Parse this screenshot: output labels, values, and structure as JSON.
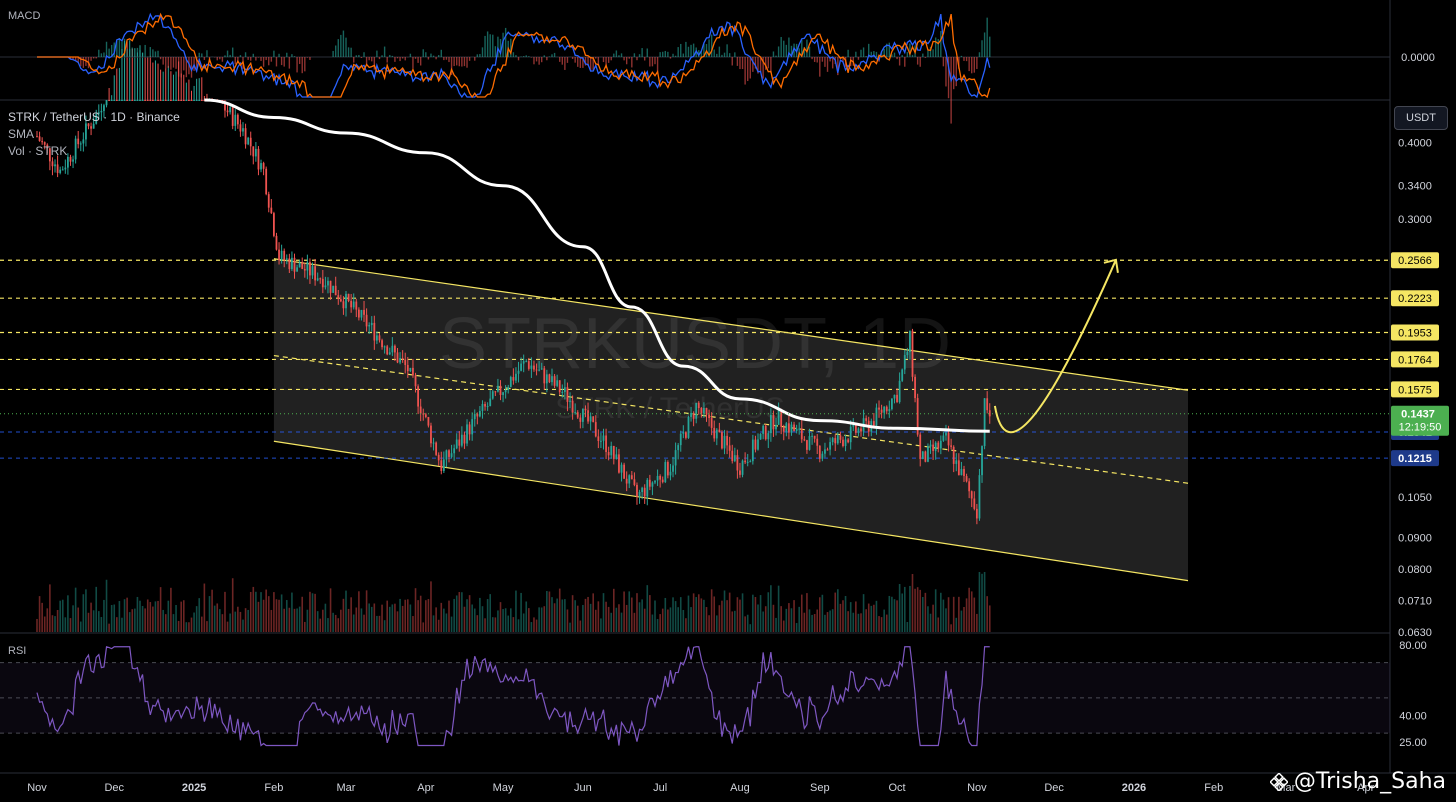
{
  "header": {
    "title": "STRK / TetherUS · 1D · Binance",
    "sma_label": "SMA",
    "vol_label": "Vol · STRK"
  },
  "watermark_text": "STRKUSDT, 1D",
  "watermark_sub": "STRK / TetherUS",
  "macd_label": "MACD",
  "rsi_label": "RSI",
  "unit_button": "USDT",
  "credit": "@Trisha_Saha",
  "colors": {
    "up": "#26a69a",
    "down": "#ef5350",
    "sma": "#ffffff",
    "channel": "#f5e663",
    "level": "#f5e663",
    "price_tag": "#4caf50",
    "blue_tag": "#1e3a8a",
    "rsi": "#7e57c2",
    "macd": "#2962ff",
    "signal": "#ff6d00"
  },
  "chart_data": {
    "type": "candlestick",
    "x_axis": {
      "ticks": [
        "Nov",
        "Dec",
        "2025",
        "Feb",
        "Mar",
        "Apr",
        "May",
        "Jun",
        "Jul",
        "Aug",
        "Sep",
        "Oct",
        "Nov",
        "Dec",
        "2026",
        "Feb",
        "Mar",
        "Apr"
      ]
    },
    "y_axis": {
      "scale": "log",
      "range": [
        0.063,
        0.47
      ],
      "ticks": [
        "0.4000",
        "0.3400",
        "0.3000",
        "0.1050",
        "0.0900",
        "0.0800",
        "0.0710",
        "0.0630"
      ]
    },
    "levels": [
      {
        "value": 0.2566,
        "label": "0.2566",
        "style": "dashed",
        "color": "#f5e663"
      },
      {
        "value": 0.2223,
        "label": "0.2223",
        "style": "dashed",
        "color": "#f5e663"
      },
      {
        "value": 0.1953,
        "label": "0.1953",
        "style": "dashed",
        "color": "#f5e663"
      },
      {
        "value": 0.1764,
        "label": "0.1764",
        "style": "dashed",
        "color": "#f5e663"
      },
      {
        "value": 0.1575,
        "label": "0.1575",
        "style": "dashed",
        "color": "#f5e663"
      }
    ],
    "current_price": {
      "value": 0.1437,
      "label": "0.1437",
      "countdown": "12:19:50"
    },
    "blue_levels": [
      {
        "value": 0.1341,
        "label": "0.1341"
      },
      {
        "value": 0.1215,
        "label": "0.1215"
      }
    ],
    "channel": {
      "upper": [
        {
          "date": "2025-02-01",
          "value": 0.258
        },
        {
          "date": "2026-01-22",
          "value": 0.157
        }
      ],
      "middle": [
        {
          "date": "2025-02-01",
          "value": 0.179
        },
        {
          "date": "2026-01-22",
          "value": 0.1105
        }
      ],
      "lower": [
        {
          "date": "2025-02-01",
          "value": 0.1295
        },
        {
          "date": "2026-01-22",
          "value": 0.0765
        }
      ]
    },
    "projection": {
      "from": {
        "date": "2025-11-15",
        "value": 0.139
      },
      "to": {
        "date": "2025-12-25",
        "value": 0.257
      }
    },
    "sma": [
      {
        "date": "2025-01-05",
        "value": 0.47
      },
      {
        "date": "2025-02-01",
        "value": 0.44
      },
      {
        "date": "2025-03-01",
        "value": 0.415
      },
      {
        "date": "2025-04-01",
        "value": 0.385
      },
      {
        "date": "2025-05-01",
        "value": 0.34
      },
      {
        "date": "2025-06-01",
        "value": 0.27
      },
      {
        "date": "2025-06-20",
        "value": 0.215
      },
      {
        "date": "2025-07-10",
        "value": 0.172
      },
      {
        "date": "2025-08-01",
        "value": 0.152
      },
      {
        "date": "2025-09-01",
        "value": 0.14
      },
      {
        "date": "2025-10-01",
        "value": 0.136
      },
      {
        "date": "2025-11-06",
        "value": 0.1345
      }
    ],
    "price_path": [
      {
        "date": "2024-11-01",
        "value": 0.41
      },
      {
        "date": "2024-11-10",
        "value": 0.36
      },
      {
        "date": "2024-11-25",
        "value": 0.45
      },
      {
        "date": "2024-12-05",
        "value": 0.6
      },
      {
        "date": "2024-12-20",
        "value": 0.55
      },
      {
        "date": "2025-01-05",
        "value": 0.5
      },
      {
        "date": "2025-01-20",
        "value": 0.42
      },
      {
        "date": "2025-01-28",
        "value": 0.36
      },
      {
        "date": "2025-02-03",
        "value": 0.26
      },
      {
        "date": "2025-02-20",
        "value": 0.24
      },
      {
        "date": "2025-03-10",
        "value": 0.2
      },
      {
        "date": "2025-03-25",
        "value": 0.17
      },
      {
        "date": "2025-04-07",
        "value": 0.118
      },
      {
        "date": "2025-04-20",
        "value": 0.14
      },
      {
        "date": "2025-05-10",
        "value": 0.175
      },
      {
        "date": "2025-05-25",
        "value": 0.155
      },
      {
        "date": "2025-06-10",
        "value": 0.128
      },
      {
        "date": "2025-06-22",
        "value": 0.105
      },
      {
        "date": "2025-07-05",
        "value": 0.118
      },
      {
        "date": "2025-07-15",
        "value": 0.148
      },
      {
        "date": "2025-08-01",
        "value": 0.118
      },
      {
        "date": "2025-08-15",
        "value": 0.142
      },
      {
        "date": "2025-09-01",
        "value": 0.125
      },
      {
        "date": "2025-09-20",
        "value": 0.138
      },
      {
        "date": "2025-10-01",
        "value": 0.155
      },
      {
        "date": "2025-10-06",
        "value": 0.19
      },
      {
        "date": "2025-10-10",
        "value": 0.12
      },
      {
        "date": "2025-10-20",
        "value": 0.13
      },
      {
        "date": "2025-11-01",
        "value": 0.1
      },
      {
        "date": "2025-11-04",
        "value": 0.148
      },
      {
        "date": "2025-11-06",
        "value": 0.1437
      }
    ],
    "macd": {
      "zero_label": "0.0000"
    },
    "rsi": {
      "ticks": [
        "80.00",
        "40.00",
        "25.00"
      ],
      "upper_band": 70,
      "lower_band": 30
    }
  }
}
